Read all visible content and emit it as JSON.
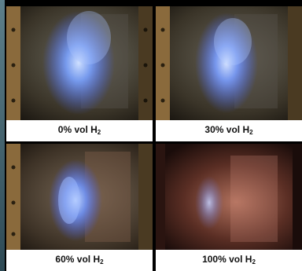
{
  "panels": [
    {
      "label": "0% vol H",
      "sub": "2"
    },
    {
      "label": "30% vol H",
      "sub": "2"
    },
    {
      "label": "60% vol H",
      "sub": "2"
    },
    {
      "label": "100% vol H",
      "sub": "2"
    }
  ],
  "colors": {
    "background": "#000000",
    "caption_background": "#ffffff",
    "plasma_blue": "#6f9bff",
    "plasma_pink": "#d08a7a"
  }
}
